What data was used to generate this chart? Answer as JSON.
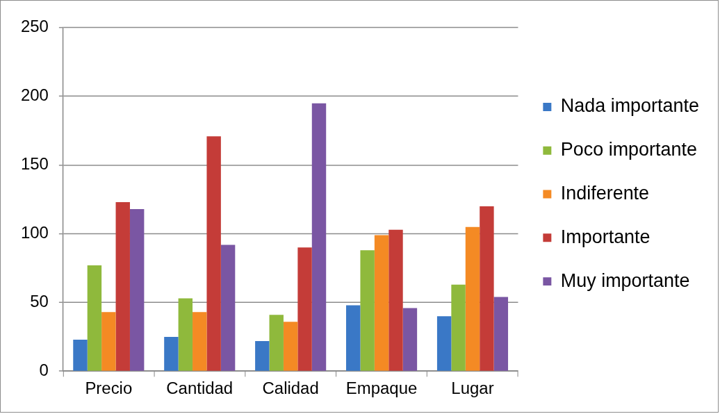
{
  "chart_data": {
    "type": "bar",
    "categories": [
      "Precio",
      "Cantidad",
      "Calidad",
      "Empaque",
      "Lugar"
    ],
    "series": [
      {
        "name": "Nada importante",
        "color": "#3a78c6",
        "values": [
          23,
          25,
          22,
          48,
          40
        ]
      },
      {
        "name": "Poco importante",
        "color": "#8fb93c",
        "values": [
          77,
          53,
          41,
          88,
          63
        ]
      },
      {
        "name": "Indiferente",
        "color": "#f48a24",
        "values": [
          43,
          43,
          36,
          99,
          105
        ]
      },
      {
        "name": "Importante",
        "color": "#c43c38",
        "values": [
          123,
          171,
          90,
          103,
          120
        ]
      },
      {
        "name": "Muy importante",
        "color": "#7a56a3",
        "values": [
          118,
          92,
          195,
          46,
          54
        ]
      }
    ],
    "ylim": [
      0,
      250
    ],
    "yticks": [
      0,
      50,
      100,
      150,
      200,
      250
    ],
    "grid": "y",
    "legend": "right"
  }
}
